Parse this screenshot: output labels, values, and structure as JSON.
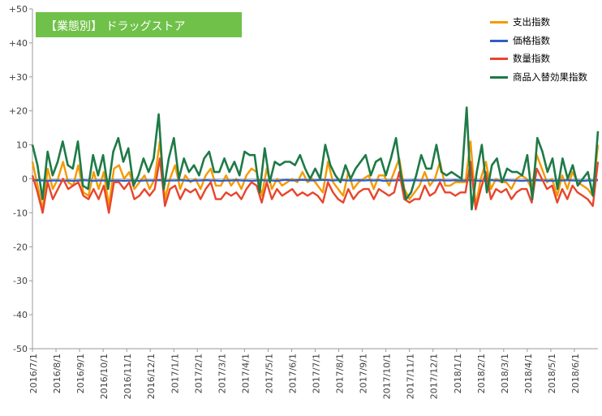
{
  "chart_data": {
    "type": "line",
    "title": "【業態別】 ドラッグストア",
    "ylim": [
      -50,
      50
    ],
    "y_ticks": [
      "+50",
      "+40",
      "+30",
      "+20",
      "10",
      "0",
      "-10",
      "-20",
      "-30",
      "-40",
      "-50"
    ],
    "x_tick_labels": [
      "2016/7/1",
      "2016/8/1",
      "2016/9/1",
      "2016/10/1",
      "2016/11/1",
      "2016/12/1",
      "2017/1/1",
      "2017/2/1",
      "2017/3/1",
      "2017/4/1",
      "2017/5/1",
      "2017/6/1",
      "2017/7/1",
      "2017/8/1",
      "2017/9/1",
      "2017/10/1",
      "2017/11/1",
      "2017/12/1",
      "2018/1/1",
      "2018/2/1",
      "2018/3/1",
      "2018/4/1",
      "2018/5/1",
      "2018/6/1"
    ],
    "legend_position": "top-right",
    "grid": false,
    "series": [
      {
        "name": "支出指数",
        "color": "#f59a00",
        "values": [
          5,
          -2,
          -9,
          3,
          -3,
          0,
          5,
          -1,
          -2,
          4,
          -4,
          -5,
          2,
          -3,
          2,
          -8,
          3,
          4,
          0,
          2,
          -3,
          -1,
          1,
          -3,
          0,
          11,
          -6,
          0,
          4,
          -3,
          1,
          -1,
          0,
          -3,
          1,
          3,
          -2,
          -2,
          1,
          -2,
          0,
          -3,
          1,
          3,
          2,
          -5,
          3,
          -3,
          0,
          -2,
          -1,
          0,
          -1,
          2,
          -1,
          0,
          -2,
          -4,
          5,
          -1,
          -3,
          -5,
          2,
          -3,
          -1,
          0,
          1,
          -3,
          1,
          1,
          -2,
          2,
          6,
          -3,
          -6,
          -4,
          -2,
          2,
          -2,
          0,
          5,
          -2,
          -2,
          -1,
          -1,
          -1,
          11,
          -8,
          0,
          5,
          -3,
          0,
          -1,
          -1,
          -3,
          0,
          1,
          0,
          -3,
          7,
          3,
          -1,
          0,
          -5,
          1,
          -3,
          2,
          -1,
          -2,
          -3,
          -5,
          10
        ],
        "ends_with_note": "last point continues to the plot edge"
      },
      {
        "name": "価格指数",
        "color": "#2f5fc4",
        "values": [
          -0.5,
          -0.4,
          -0.5,
          -0.6,
          -0.5,
          -0.5,
          -0.6,
          -0.5,
          -0.6,
          -0.5,
          -0.4,
          -0.5,
          -0.6,
          -0.5,
          -0.5,
          -0.6,
          -0.5,
          -0.5,
          -0.6,
          -0.5,
          -0.5,
          -0.6,
          -0.5,
          -0.5,
          -0.5,
          -0.4,
          -0.6,
          -0.5,
          -0.5,
          -0.4,
          -0.5,
          -0.6,
          -0.5,
          -0.5,
          -0.4,
          -0.5,
          -0.5,
          -0.6,
          -0.5,
          -0.5,
          -0.4,
          -0.5,
          -0.5,
          -0.6,
          -0.5,
          -0.4,
          -0.5,
          -0.5,
          -0.6,
          -0.4,
          -0.3,
          -0.5,
          -0.4,
          -0.3,
          -0.4,
          -0.5,
          -0.4,
          -0.3,
          -0.4,
          -0.5,
          -0.4,
          -0.4,
          -0.5,
          -0.5,
          -0.4,
          -0.5,
          -0.4,
          -0.5,
          -0.4,
          -0.6,
          -0.5,
          -0.5,
          -0.4,
          -0.5,
          -0.5,
          -0.4,
          -0.5,
          -0.5,
          -0.4,
          -0.5,
          -0.4,
          -0.5,
          -0.5,
          -0.4,
          -0.5,
          -0.5,
          -0.4,
          -0.5,
          -0.6,
          -0.5,
          -0.4,
          -0.5,
          -0.5,
          -0.4,
          -0.5,
          -0.5,
          -0.6,
          -0.5,
          -0.5,
          -0.4,
          -0.5,
          -0.5,
          -0.6,
          -0.5,
          -0.5,
          -0.4,
          -0.5,
          -0.5,
          -0.6,
          -0.5,
          -0.5,
          -0.4
        ]
      },
      {
        "name": "数量指数",
        "color": "#e8452c",
        "values": [
          1,
          -4,
          -10,
          -1,
          -6,
          -3,
          0,
          -3,
          -2,
          -1,
          -5,
          -6,
          -3,
          -6,
          -2,
          -10,
          -1,
          -1,
          -3,
          -1,
          -6,
          -5,
          -3,
          -5,
          -3,
          6,
          -8,
          -3,
          -2,
          -6,
          -3,
          -4,
          -3,
          -6,
          -3,
          -1,
          -6,
          -6,
          -4,
          -5,
          -4,
          -6,
          -3,
          -1,
          -2,
          -7,
          -1,
          -6,
          -3,
          -5,
          -4,
          -3,
          -5,
          -4,
          -5,
          -4,
          -5,
          -7,
          -1,
          -4,
          -6,
          -7,
          -3,
          -6,
          -4,
          -3,
          -3,
          -6,
          -3,
          -4,
          -5,
          -4,
          2,
          -6,
          -7,
          -6,
          -6,
          -2,
          -5,
          -4,
          -1,
          -4,
          -4,
          -5,
          -4,
          -4,
          5,
          -9,
          -3,
          2,
          -6,
          -3,
          -4,
          -3,
          -6,
          -4,
          -3,
          -3,
          -7,
          3,
          0,
          -3,
          -2,
          -7,
          -3,
          -6,
          -2,
          -4,
          -5,
          -6,
          -8,
          5
        ]
      },
      {
        "name": "商品入替効果指数",
        "color": "#1e7a46",
        "values": [
          10,
          4,
          -6,
          8,
          1,
          5,
          11,
          4,
          3,
          11,
          -2,
          -3,
          7,
          1,
          7,
          -3,
          8,
          12,
          5,
          9,
          -2,
          1,
          6,
          2,
          6,
          19,
          -3,
          6,
          12,
          0,
          6,
          2,
          4,
          1,
          6,
          8,
          2,
          2,
          6,
          2,
          5,
          1,
          8,
          7,
          7,
          -4,
          9,
          -1,
          5,
          4,
          5,
          5,
          4,
          7,
          3,
          0,
          3,
          0,
          10,
          4,
          1,
          -1,
          4,
          0,
          3,
          5,
          7,
          1,
          5,
          6,
          1,
          6,
          12,
          1,
          -6,
          -4,
          1,
          7,
          3,
          3,
          10,
          2,
          1,
          2,
          1,
          0,
          21,
          -9,
          2,
          10,
          -4,
          4,
          6,
          -1,
          3,
          2,
          2,
          1,
          7,
          -6,
          12,
          8,
          2,
          6,
          -3,
          6,
          0,
          4,
          -2,
          0,
          2,
          -5,
          14
        ]
      }
    ]
  }
}
